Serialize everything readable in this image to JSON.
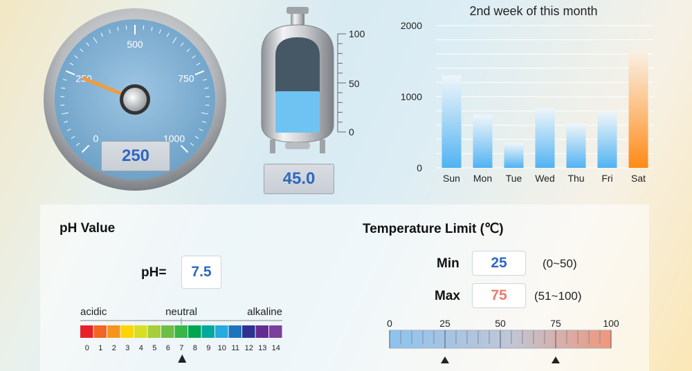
{
  "gauge": {
    "ticks": [
      "0",
      "250",
      "500",
      "750",
      "1000"
    ],
    "min": 0,
    "max": 1000,
    "value": 250,
    "readout": "250",
    "needle_color": "#f39a3b"
  },
  "tank": {
    "ticks": [
      "100",
      "50",
      "0"
    ],
    "level": 45.0,
    "readout": "45.0",
    "liquid_color": "#6fc3f2"
  },
  "chart_data": {
    "type": "bar",
    "title": "2nd week of this month",
    "categories": [
      "Sun",
      "Mon",
      "Tue",
      "Wed",
      "Thu",
      "Fri",
      "Sat"
    ],
    "values": [
      1300,
      750,
      350,
      850,
      630,
      800,
      1650
    ],
    "ylim": [
      0,
      2000
    ],
    "yticks": [
      "0",
      "1000",
      "2000"
    ],
    "grid": true,
    "bar_color": "#4fb2f2",
    "highlight_color": "#ff8a16",
    "highlight_category": "Sat"
  },
  "ph": {
    "title": "pH Value",
    "label": "pH=",
    "value": "7.5",
    "scale_labels": {
      "acidic": "acidic",
      "neutral": "neutral",
      "alkaline": "alkaline"
    },
    "numbers": [
      "0",
      "1",
      "2",
      "3",
      "4",
      "5",
      "6",
      "7",
      "8",
      "9",
      "10",
      "11",
      "12",
      "13",
      "14"
    ],
    "marker_value": 7.5,
    "colors": [
      "#e8202a",
      "#f26522",
      "#f7941d",
      "#ffd400",
      "#d7df23",
      "#a6ce39",
      "#6dbe45",
      "#39b54a",
      "#00a651",
      "#00a99d",
      "#27aae1",
      "#1c75bc",
      "#2e3192",
      "#662d91",
      "#7b3f9e"
    ]
  },
  "temperature": {
    "title": "Temperature Limit (℃)",
    "min_label": "Min",
    "min_value": "25",
    "min_range": "(0~50)",
    "max_label": "Max",
    "max_value": "75",
    "max_range": "(51~100)",
    "scale": [
      "0",
      "25",
      "50",
      "75",
      "100"
    ],
    "min_marker": 25,
    "max_marker": 75,
    "min_color": "#2f67c2",
    "max_color": "#e97b6a"
  }
}
